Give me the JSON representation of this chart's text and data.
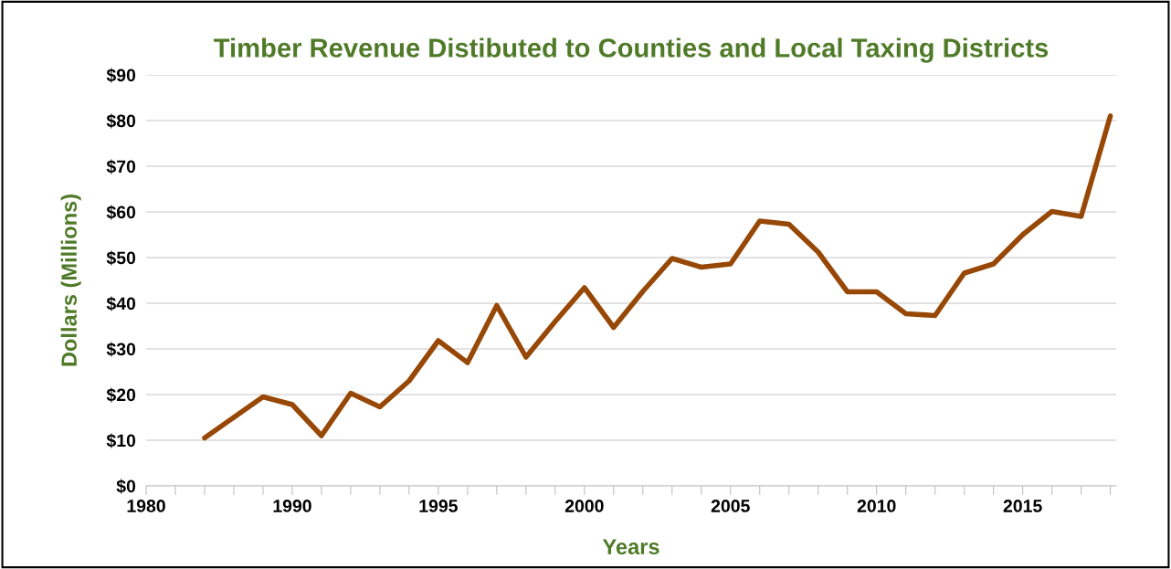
{
  "chart_data": {
    "type": "line",
    "title": "Timber Revenue Distibuted to Counties and Local Taxing Districts",
    "xlabel": "Years",
    "ylabel": "Dollars (Millions)",
    "categories": [
      "1980",
      null,
      null,
      null,
      null,
      "1990",
      null,
      null,
      null,
      null,
      "1995",
      null,
      null,
      null,
      null,
      "2000",
      null,
      null,
      null,
      null,
      "2005",
      null,
      null,
      null,
      null,
      "2010",
      null,
      null,
      null,
      null,
      "2015",
      null,
      null,
      null
    ],
    "series": [
      {
        "color": "#974806",
        "values": [
          null,
          null,
          10.5,
          15,
          19.5,
          17.8,
          11,
          20.3,
          17.3,
          23,
          31.8,
          27,
          39.5,
          28.2,
          36,
          43.4,
          34.7,
          42.6,
          49.8,
          47.9,
          48.6,
          58,
          57.3,
          51.2,
          42.5,
          42.5,
          37.7,
          37.3,
          46.6,
          48.6,
          55,
          60.1,
          59,
          81
        ]
      }
    ],
    "ylim": [
      0,
      90
    ],
    "yticks": [
      {
        "value": 0,
        "label": "$0"
      },
      {
        "value": 10,
        "label": "$10"
      },
      {
        "value": 20,
        "label": "$20"
      },
      {
        "value": 30,
        "label": "$30"
      },
      {
        "value": 40,
        "label": "$40"
      },
      {
        "value": 50,
        "label": "$50"
      },
      {
        "value": 60,
        "label": "$60"
      },
      {
        "value": 70,
        "label": "$70"
      },
      {
        "value": 80,
        "label": "$80"
      },
      {
        "value": 90,
        "label": "$90"
      }
    ],
    "grid": "y",
    "marker": "none",
    "line_style": "solid"
  }
}
